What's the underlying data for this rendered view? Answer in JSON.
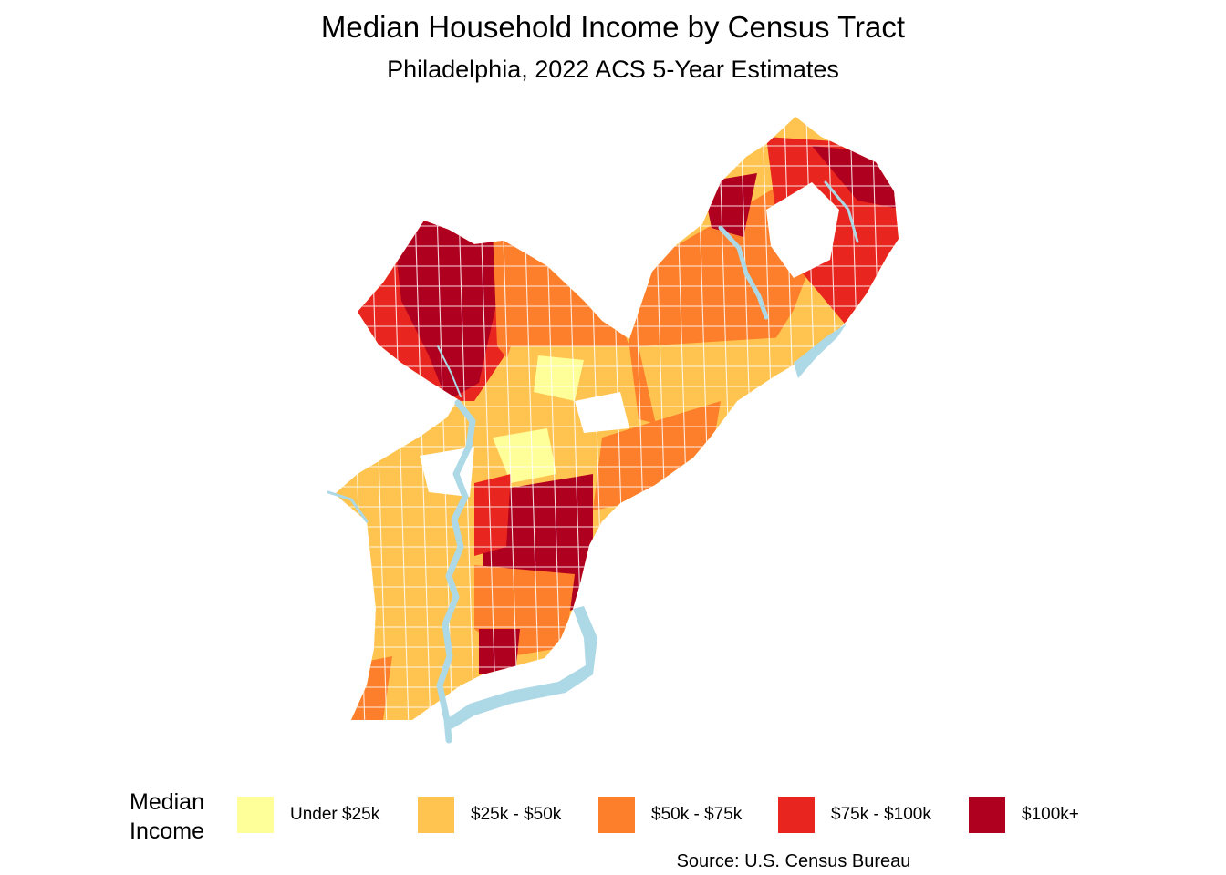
{
  "map": {
    "title": "Median Household Income by Census Tract",
    "subtitle": "Philadelphia, 2022 ACS 5-Year Estimates",
    "caption": "Source: U.S. Census Bureau",
    "water_color": "#add8e6",
    "border_color": "#ffffff",
    "legend": {
      "title_line1": "Median",
      "title_line2": "Income",
      "placement": "bottom",
      "items": [
        {
          "label": "Under $25k",
          "color": "#ffff99"
        },
        {
          "label": "$25k - $50k",
          "color": "#fec44f"
        },
        {
          "label": "$50k - $75k",
          "color": "#fd7f2c"
        },
        {
          "label": "$75k - $100k",
          "color": "#e8251e"
        },
        {
          "label": "$100k+",
          "color": "#b0001f"
        }
      ]
    }
  }
}
